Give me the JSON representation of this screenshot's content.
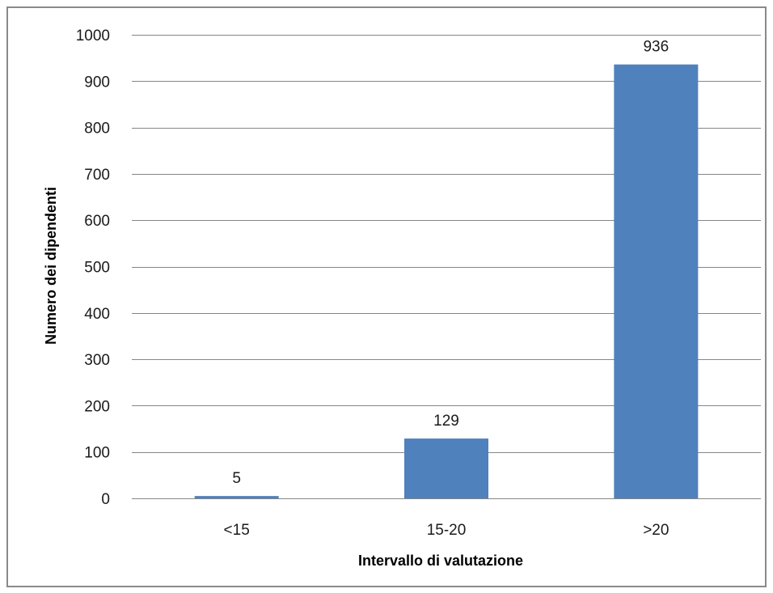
{
  "chart_data": {
    "type": "bar",
    "title": "",
    "xlabel": "Intervallo di  valutazione",
    "ylabel": "Numero dei dipendenti",
    "categories": [
      "<15",
      "15-20",
      ">20"
    ],
    "values": [
      5,
      129,
      936
    ],
    "data_labels": [
      "5",
      "129",
      "936"
    ],
    "ylim": [
      0,
      1000
    ],
    "yticks": [
      0,
      100,
      200,
      300,
      400,
      500,
      600,
      700,
      800,
      900,
      1000
    ],
    "grid": true,
    "legend": "none",
    "bar_color": "#4f81bd",
    "grid_color": "#868686"
  }
}
